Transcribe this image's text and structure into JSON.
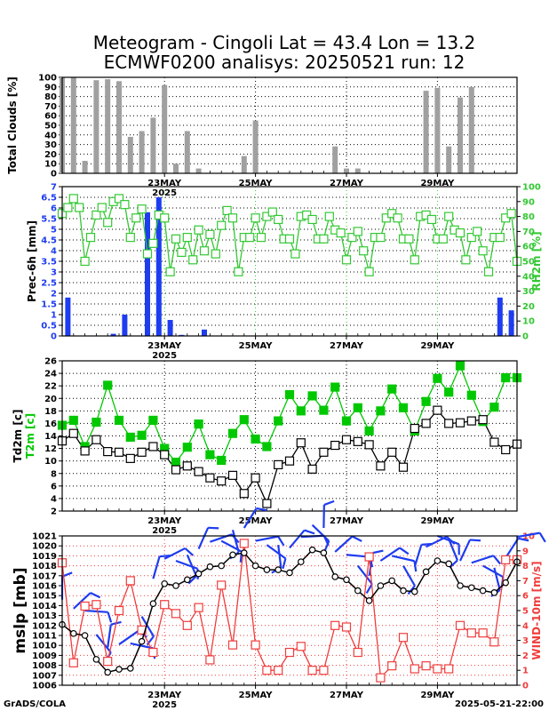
{
  "title_line1": "Meteogram - Cingoli Lat = 43.4 Lon = 13.2",
  "title_line2": "ECMWF0200 analisys: 20250521 run: 12",
  "footer_left": "GrADS/COLA",
  "footer_right": "2025-05-21-22:00",
  "colors": {
    "clouds": "#a0a0a0",
    "precip": "#1e3cf0",
    "rh": "#32c832",
    "t2m": "#00c800",
    "td2m": "#000000",
    "mslp": "#000000",
    "wind": "#f03c3c",
    "barb": "#1e3cf0",
    "grid": "#000000"
  },
  "time_axis": {
    "ticks": [
      {
        "t": 9,
        "label": "23MAY",
        "sub": "2025"
      },
      {
        "t": 17,
        "label": "25MAY",
        "sub": ""
      },
      {
        "t": 25,
        "label": "27MAY",
        "sub": ""
      },
      {
        "t": 33,
        "label": "29MAY",
        "sub": ""
      }
    ],
    "range": [
      0,
      40
    ]
  },
  "chart_data": [
    {
      "type": "bar",
      "ylabel": "Total Clouds [%]",
      "ylim": [
        0,
        100
      ],
      "yticks": [
        0,
        10,
        20,
        30,
        40,
        50,
        60,
        70,
        80,
        90,
        100
      ],
      "t": [
        0,
        1,
        2,
        3,
        4,
        5,
        6,
        7,
        8,
        9,
        10,
        11,
        12,
        13,
        14,
        15,
        16,
        17,
        18,
        19,
        20,
        21,
        22,
        23,
        24,
        25,
        26,
        27,
        28,
        29,
        30,
        31,
        32,
        33,
        34,
        35,
        36,
        37,
        38,
        39,
        40
      ],
      "values": [
        100,
        100,
        13,
        97,
        98,
        96,
        38,
        44,
        58,
        92,
        10,
        44,
        5,
        0,
        0,
        0,
        18,
        55,
        0,
        0,
        0,
        0,
        0,
        0,
        28,
        5,
        5,
        0,
        0,
        0,
        0,
        0,
        86,
        89,
        28,
        79,
        90,
        0,
        0,
        0,
        0
      ]
    },
    {
      "type": "bar+line",
      "ylabel": "Prec-6h [mm]",
      "ylabel_right": "RH2m [%]",
      "ylim": [
        0,
        7
      ],
      "yticks": [
        0,
        0.5,
        1,
        1.5,
        2,
        2.5,
        3,
        3.5,
        4,
        4.5,
        5,
        5.5,
        6,
        6.5,
        7
      ],
      "ylim_right": [
        0,
        100
      ],
      "yticks_right": [
        0,
        10,
        20,
        30,
        40,
        50,
        60,
        70,
        80,
        90,
        100
      ],
      "precip_t": [
        0.5,
        4.5,
        5.5,
        7.5,
        8.5,
        9.5,
        10.5,
        12.5,
        38.5,
        39.5
      ],
      "precip_values": [
        1.8,
        0.1,
        1.0,
        5.8,
        6.5,
        0.75,
        0.05,
        0.3,
        1.8,
        1.2
      ],
      "rh_t": [
        0,
        0.5,
        1,
        1.5,
        2,
        2.5,
        3,
        3.5,
        4,
        4.5,
        5,
        5.5,
        6,
        6.5,
        7,
        7.5,
        8,
        8.5,
        9,
        9.5,
        10,
        10.5,
        11,
        11.5,
        12,
        12.5,
        13,
        13.5,
        14,
        14.5,
        15,
        15.5,
        16,
        16.5,
        17,
        17.5,
        18,
        18.5,
        19,
        19.5,
        20,
        20.5,
        21,
        21.5,
        22,
        22.5,
        23,
        23.5,
        24,
        24.5,
        25,
        25.5,
        26,
        26.5,
        27,
        27.5,
        28,
        28.5,
        29,
        29.5,
        30,
        30.5,
        31,
        31.5,
        32,
        32.5,
        33,
        33.5,
        34,
        34.5,
        35,
        35.5,
        36,
        36.5,
        37,
        37.5,
        38,
        38.5,
        39,
        39.5,
        40
      ],
      "rh_values": [
        82,
        86,
        92,
        86,
        50,
        66,
        81,
        86,
        76,
        90,
        92,
        88,
        66,
        79,
        85,
        55,
        62,
        81,
        79,
        43,
        65,
        56,
        66,
        51,
        71,
        57,
        68,
        55,
        74,
        84,
        79,
        43,
        66,
        66,
        79,
        66,
        80,
        83,
        78,
        65,
        65,
        55,
        80,
        81,
        78,
        65,
        65,
        80,
        71,
        69,
        51,
        66,
        70,
        57,
        43,
        66,
        66,
        79,
        82,
        79,
        65,
        65,
        51,
        80,
        81,
        78,
        65,
        65,
        80,
        71,
        69,
        51,
        66,
        70,
        57,
        43,
        66,
        66,
        79,
        82,
        50
      ]
    },
    {
      "type": "line",
      "ylabel": "Td2m [c]",
      "ylabel2": "T2m [c]",
      "ylim": [
        2,
        26
      ],
      "yticks": [
        2,
        4,
        6,
        8,
        10,
        12,
        14,
        16,
        18,
        20,
        22,
        24,
        26
      ],
      "t": [
        0,
        1,
        2,
        3,
        4,
        5,
        6,
        7,
        8,
        9,
        10,
        11,
        12,
        13,
        14,
        15,
        16,
        17,
        18,
        19,
        20,
        21,
        22,
        23,
        24,
        25,
        26,
        27,
        28,
        29,
        30,
        31,
        32,
        33,
        34,
        35,
        36,
        37,
        38,
        39,
        40
      ],
      "t2m": [
        15.7,
        16.5,
        12.3,
        16.2,
        22.1,
        16.5,
        13.8,
        14.1,
        16.5,
        12.0,
        9.8,
        12.2,
        15.9,
        11.0,
        10.1,
        14.4,
        16.6,
        13.5,
        12.3,
        16.4,
        20.6,
        18.0,
        20.4,
        18.1,
        21.8,
        16.4,
        18.5,
        14.8,
        18.0,
        21.5,
        18.5,
        14.8,
        19.5,
        23.2,
        21.0,
        25.2,
        20.5,
        16.3,
        18.6,
        23.3,
        23.3
      ],
      "td2m": [
        13.2,
        14.4,
        11.6,
        13.4,
        11.5,
        11.4,
        10.4,
        11.4,
        12.3,
        11.0,
        8.6,
        9.2,
        8.3,
        7.3,
        6.8,
        7.7,
        4.8,
        7.3,
        3.2,
        9.4,
        10.0,
        12.9,
        8.7,
        11.4,
        12.5,
        13.4,
        13.1,
        12.6,
        9.2,
        11.4,
        9.0,
        15.2,
        16.0,
        18.1,
        16.0,
        16.1,
        16.4,
        16.6,
        13.0,
        11.8,
        12.7
      ]
    },
    {
      "type": "line+barbs",
      "ylabel": "mslp [mb]",
      "ylabel_right": "WIND-10m [m/s]",
      "ylim": [
        1006,
        1021
      ],
      "yticks": [
        1006,
        1007,
        1008,
        1009,
        1010,
        1011,
        1012,
        1013,
        1014,
        1015,
        1016,
        1017,
        1018,
        1019,
        1020,
        1021
      ],
      "ylim_right": [
        0,
        10
      ],
      "yticks_right": [
        0,
        1,
        2,
        3,
        4,
        5,
        6,
        7,
        8,
        9,
        10
      ],
      "t": [
        0,
        1,
        2,
        3,
        4,
        5,
        6,
        7,
        8,
        9,
        10,
        11,
        12,
        13,
        14,
        15,
        16,
        17,
        18,
        19,
        20,
        21,
        22,
        23,
        24,
        25,
        26,
        27,
        28,
        29,
        30,
        31,
        32,
        33,
        34,
        35,
        36,
        37,
        38,
        39,
        40
      ],
      "mslp": [
        1012.1,
        1011.2,
        1011.0,
        1008.6,
        1007.3,
        1007.6,
        1007.7,
        1010.4,
        1014.2,
        1016.2,
        1016.0,
        1016.6,
        1017.2,
        1017.9,
        1018.0,
        1019.1,
        1019.3,
        1018.0,
        1017.6,
        1017.6,
        1017.3,
        1018.4,
        1019.6,
        1019.3,
        1016.9,
        1016.6,
        1015.5,
        1014.5,
        1016.0,
        1016.5,
        1015.5,
        1015.4,
        1017.4,
        1018.5,
        1018.2,
        1016.0,
        1015.8,
        1015.5,
        1015.3,
        1016.3,
        1018.4
      ],
      "wind": [
        8.2,
        1.5,
        5.3,
        5.4,
        1.6,
        5.0,
        7.0,
        3.7,
        2.2,
        5.4,
        4.8,
        4.0,
        5.2,
        1.7,
        6.7,
        2.7,
        9.5,
        2.7,
        1.0,
        1.0,
        2.2,
        2.6,
        1.0,
        1.0,
        4.0,
        3.9,
        2.2,
        8.6,
        0.5,
        1.3,
        3.2,
        1.1,
        1.3,
        1.1,
        1.1,
        4.0,
        3.5,
        3.5,
        2.9,
        8.4,
        8.4
      ]
    }
  ]
}
